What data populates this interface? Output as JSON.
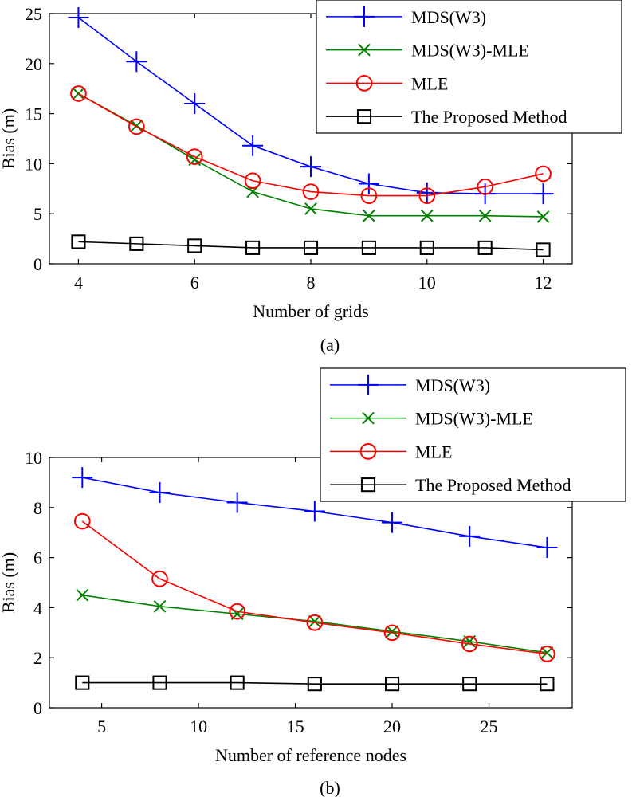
{
  "chart_data": [
    {
      "type": "line",
      "caption": "(a)",
      "xlabel": "Number of grids",
      "ylabel": "Bias (m)",
      "xlim": [
        3.5,
        12.5
      ],
      "ylim": [
        0,
        25
      ],
      "xticks": [
        4,
        6,
        8,
        10,
        12
      ],
      "yticks": [
        0,
        5,
        10,
        15,
        20,
        25
      ],
      "legend_position": "top-right",
      "x": [
        4,
        5,
        6,
        7,
        8,
        9,
        10,
        11,
        12
      ],
      "series": [
        {
          "name": "MDS(W3)",
          "color": "#0000ff",
          "marker": "plus",
          "values": [
            24.6,
            20.2,
            16.0,
            11.8,
            9.7,
            8.0,
            7.1,
            7.0,
            7.0
          ]
        },
        {
          "name": "MDS(W3)-MLE",
          "color": "#008000",
          "marker": "x",
          "values": [
            17.0,
            13.8,
            10.4,
            7.2,
            5.5,
            4.8,
            4.8,
            4.8,
            4.7
          ]
        },
        {
          "name": "MLE",
          "color": "#ff0000",
          "marker": "circle",
          "values": [
            17.0,
            13.7,
            10.7,
            8.3,
            7.2,
            6.8,
            6.8,
            7.7,
            9.0
          ]
        },
        {
          "name": "The Proposed Method",
          "color": "#000000",
          "marker": "square",
          "values": [
            2.2,
            2.0,
            1.8,
            1.6,
            1.6,
            1.6,
            1.6,
            1.6,
            1.4
          ]
        }
      ]
    },
    {
      "type": "line",
      "caption": "(b)",
      "xlabel": "Number of reference nodes",
      "ylabel": "Bias (m)",
      "xlim": [
        2.3,
        29.3
      ],
      "ylim": [
        0,
        10
      ],
      "xticks": [
        5,
        10,
        15,
        20,
        25
      ],
      "yticks": [
        0,
        2,
        4,
        6,
        8,
        10
      ],
      "legend_position": "top-right",
      "x": [
        4,
        8,
        12,
        16,
        20,
        24,
        28
      ],
      "series": [
        {
          "name": "MDS(W3)",
          "color": "#0000ff",
          "marker": "plus",
          "values": [
            9.2,
            8.6,
            8.2,
            7.85,
            7.4,
            6.85,
            6.4
          ]
        },
        {
          "name": "MDS(W3)-MLE",
          "color": "#008000",
          "marker": "x",
          "values": [
            4.5,
            4.05,
            3.75,
            3.45,
            3.05,
            2.65,
            2.2
          ]
        },
        {
          "name": "MLE",
          "color": "#ff0000",
          "marker": "circle",
          "values": [
            7.45,
            5.15,
            3.85,
            3.4,
            3.0,
            2.55,
            2.15
          ]
        },
        {
          "name": "The Proposed Method",
          "color": "#000000",
          "marker": "square",
          "values": [
            1.0,
            1.0,
            1.0,
            0.95,
            0.95,
            0.95,
            0.95
          ]
        }
      ]
    }
  ]
}
